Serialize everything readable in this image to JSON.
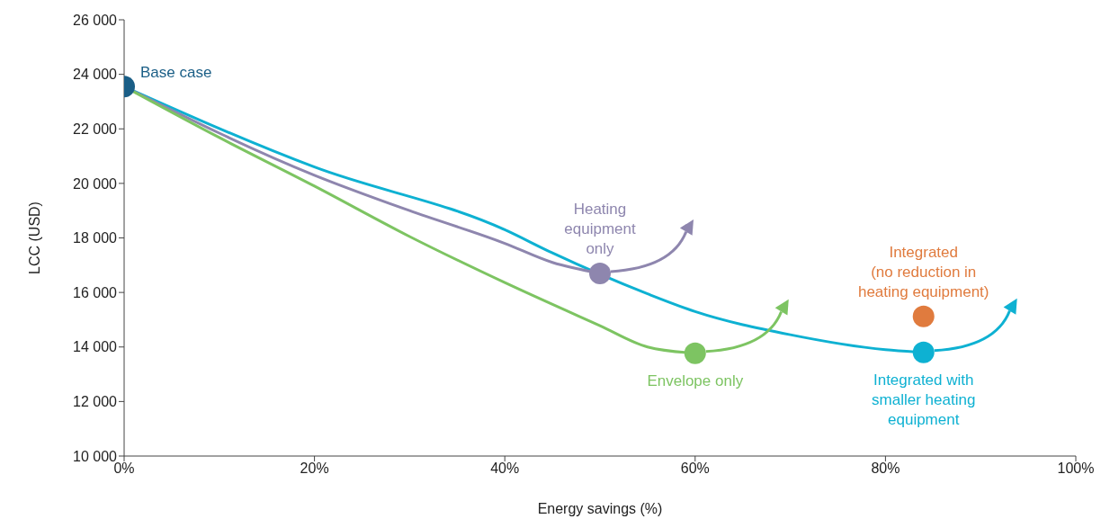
{
  "chart_data": {
    "type": "line",
    "xlabel": "Energy savings (%)",
    "ylabel": "LCC (USD)",
    "xlim": [
      0,
      100
    ],
    "xticks": [
      {
        "value": 0,
        "label": "0%"
      },
      {
        "value": 20,
        "label": "20%"
      },
      {
        "value": 40,
        "label": "40%"
      },
      {
        "value": 60,
        "label": "60%"
      },
      {
        "value": 80,
        "label": "80%"
      },
      {
        "value": 100,
        "label": "100%"
      }
    ],
    "ylim": [
      10000,
      26000
    ],
    "yticks": [
      {
        "value": 10000,
        "label": "10 000"
      },
      {
        "value": 12000,
        "label": "12 000"
      },
      {
        "value": 14000,
        "label": "14 000"
      },
      {
        "value": 16000,
        "label": "16 000"
      },
      {
        "value": 18000,
        "label": "18 000"
      },
      {
        "value": 20000,
        "label": "20 000"
      },
      {
        "value": 22000,
        "label": "22 000"
      },
      {
        "value": 24000,
        "label": "24 000"
      },
      {
        "value": 26000,
        "label": "26 000"
      }
    ],
    "grid": false,
    "legend": false,
    "series": [
      {
        "type": "line",
        "color": "#0eb1d2",
        "x": [
          0,
          20,
          40,
          45,
          55,
          60,
          70,
          80,
          84
        ],
        "values": [
          23550,
          20600,
          18300,
          17450,
          15950,
          15300,
          14450,
          13900,
          13800
        ]
      },
      {
        "type": "line",
        "color": "#8e86ae",
        "x": [
          0,
          20,
          30,
          40,
          45,
          50
        ],
        "values": [
          23550,
          20300,
          19000,
          17800,
          17100,
          16700
        ]
      },
      {
        "type": "line",
        "color": "#7dc462",
        "x": [
          0,
          10,
          20,
          30,
          40,
          50,
          55,
          60
        ],
        "values": [
          23550,
          21680,
          19900,
          18050,
          16360,
          14780,
          14000,
          13770
        ]
      },
      {
        "type": "scatter",
        "name": "Base case",
        "color": "#1a5e86",
        "marker": "circle",
        "x": [
          0
        ],
        "values": [
          23550
        ]
      },
      {
        "type": "scatter",
        "name": "Heating\nequipment\nonly",
        "color": "#8e86ae",
        "marker": "circle",
        "x": [
          50
        ],
        "values": [
          16700
        ]
      },
      {
        "type": "scatter",
        "name": "Envelope only",
        "color": "#7dc462",
        "marker": "circle",
        "x": [
          60
        ],
        "values": [
          13770
        ]
      },
      {
        "type": "scatter",
        "name": "Integrated with\nsmaller heating\nequipment",
        "color": "#0eb1d2",
        "marker": "circle",
        "x": [
          84
        ],
        "values": [
          13800
        ]
      },
      {
        "type": "scatter",
        "name": "Integrated\n(no reduction in\nheating equipment)",
        "color": "#e07b3e",
        "marker": "circle",
        "x": [
          84
        ],
        "values": [
          15120
        ]
      }
    ]
  }
}
